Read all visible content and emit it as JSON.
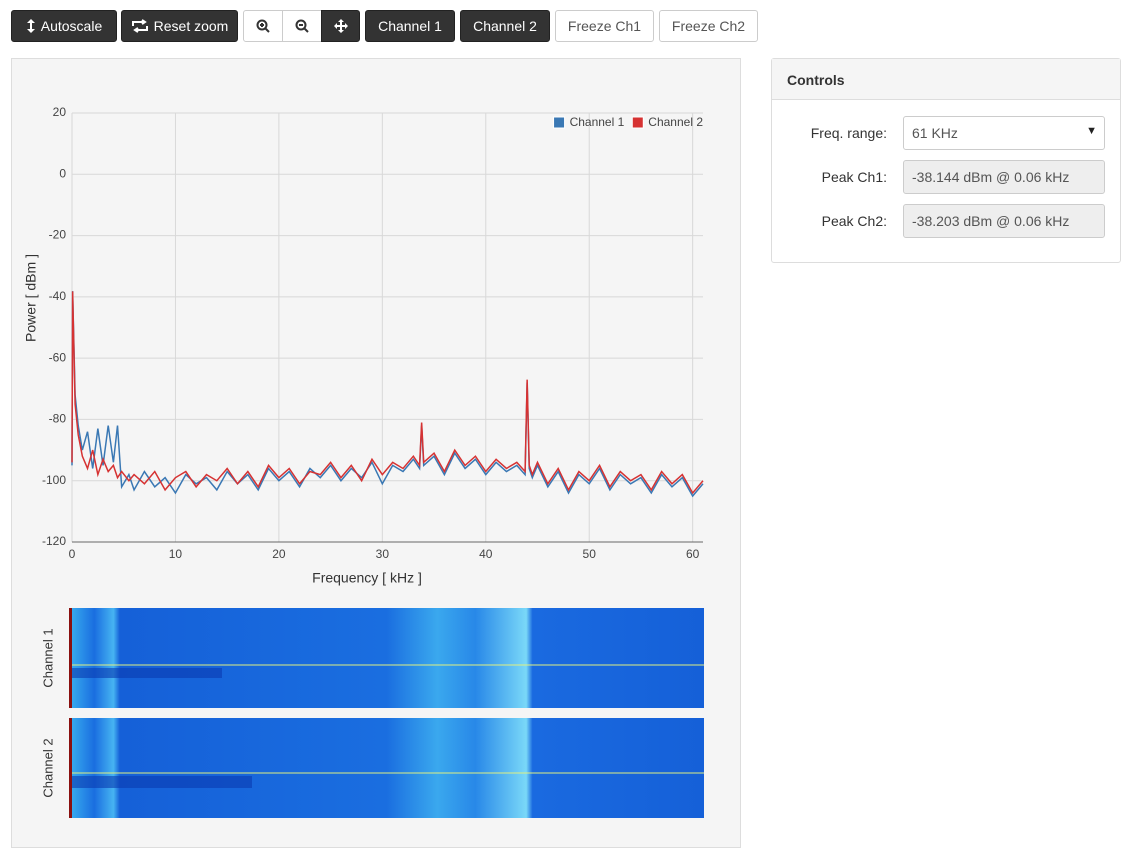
{
  "toolbar": {
    "buttons": [
      "Autoscale",
      "Reset zoom",
      "Channel 1",
      "Channel 2",
      "Freeze Ch1",
      "Freeze Ch2"
    ]
  },
  "chart_data": {
    "type": "line",
    "x_label": "Frequency [ kHz ]",
    "y_label": "Power [ dBm ]",
    "x": [
      0,
      0.06,
      0.3,
      0.6,
      1,
      1.5,
      2,
      2.5,
      3,
      3.5,
      4,
      4.4,
      4.8,
      5.5,
      6,
      7,
      8,
      9,
      10,
      11,
      12,
      13,
      14,
      15,
      16,
      17,
      18,
      19,
      20,
      21,
      22,
      23,
      24,
      25,
      26,
      27,
      28,
      29,
      30,
      31,
      32,
      33,
      33.6,
      33.8,
      34,
      35,
      36,
      37,
      38,
      39,
      40,
      41,
      42,
      43,
      43.8,
      44,
      44.2,
      44.5,
      45,
      46,
      47,
      48,
      49,
      50,
      51,
      52,
      53,
      54,
      55,
      56,
      57,
      58,
      59,
      60,
      61
    ],
    "series": [
      {
        "name": "Channel 1",
        "color": "#3a78b4",
        "values": [
          -95,
          -38.144,
          -72,
          -82,
          -90,
          -84,
          -96,
          -83,
          -95,
          -82,
          -94,
          -82,
          -102,
          -98,
          -103,
          -97,
          -102,
          -99,
          -104,
          -98,
          -101,
          -99,
          -103,
          -97,
          -101,
          -98,
          -103,
          -96,
          -100,
          -97,
          -102,
          -96,
          -99,
          -95,
          -100,
          -96,
          -99,
          -94,
          -101,
          -95,
          -97,
          -93,
          -96,
          -82,
          -95,
          -92,
          -98,
          -91,
          -96,
          -93,
          -98,
          -94,
          -97,
          -95,
          -98,
          -68,
          -96,
          -99,
          -95,
          -102,
          -97,
          -104,
          -98,
          -101,
          -96,
          -103,
          -98,
          -101,
          -99,
          -104,
          -98,
          -102,
          -99,
          -105,
          -101
        ]
      },
      {
        "name": "Channel 2",
        "color": "#d63232",
        "values": [
          -94,
          -38.203,
          -75,
          -85,
          -92,
          -96,
          -90,
          -98,
          -93,
          -97,
          -95,
          -99,
          -97,
          -100,
          -98,
          -101,
          -97,
          -103,
          -99,
          -97,
          -102,
          -98,
          -100,
          -96,
          -101,
          -97,
          -102,
          -95,
          -99,
          -96,
          -101,
          -97,
          -98,
          -94,
          -99,
          -95,
          -100,
          -93,
          -98,
          -94,
          -96,
          -92,
          -95,
          -81,
          -94,
          -91,
          -97,
          -90,
          -95,
          -92,
          -97,
          -93,
          -96,
          -94,
          -97,
          -67,
          -95,
          -98,
          -94,
          -101,
          -96,
          -103,
          -97,
          -100,
          -95,
          -102,
          -97,
          -100,
          -98,
          -103,
          -97,
          -101,
          -98,
          -104,
          -100
        ]
      }
    ],
    "xlim": [
      0,
      61
    ],
    "xticks": [
      0,
      10,
      20,
      30,
      40,
      50,
      60
    ],
    "ylim": [
      -120,
      20
    ],
    "yticks": [
      -120,
      -100,
      -80,
      -60,
      -40,
      -20,
      0,
      20
    ],
    "grid": true,
    "legend": "upper right"
  },
  "spectrogram_labels": [
    "Channel 1",
    "Channel 2"
  ],
  "controls": {
    "title": "Controls",
    "rows": [
      {
        "label": "Freq. range:",
        "value": "61 KHz"
      },
      {
        "label": "Peak Ch1:",
        "value": "-38.144 dBm @ 0.06 kHz"
      },
      {
        "label": "Peak Ch2:",
        "value": "-38.203 dBm @ 0.06 kHz"
      }
    ]
  }
}
